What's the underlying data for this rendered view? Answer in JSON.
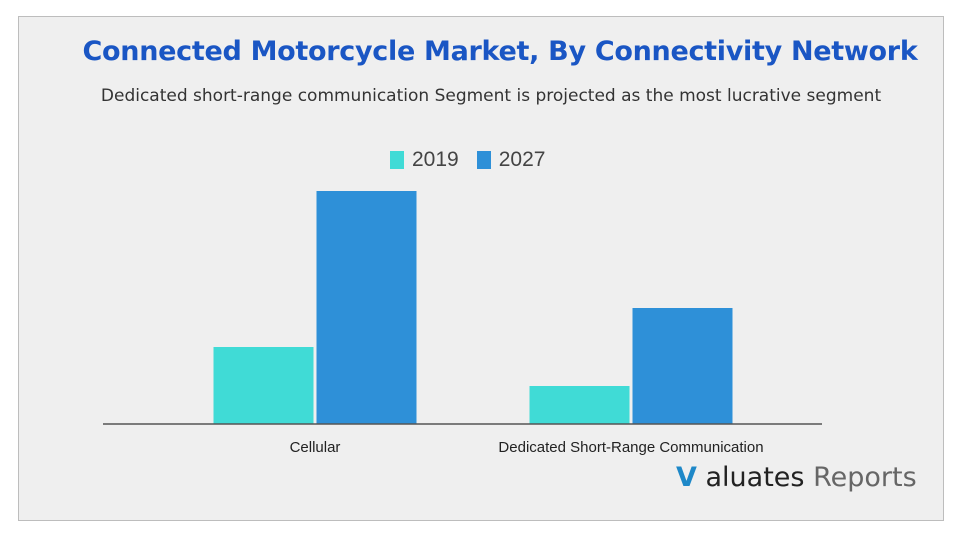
{
  "chart_data": {
    "type": "bar",
    "title": "Connected Motorcycle Market, By Connectivity Network",
    "subtitle": "Dedicated short-range communication Segment is projected as the most lucrative segment",
    "categories": [
      "Cellular",
      "Dedicated Short-Range Communication"
    ],
    "series": [
      {
        "name": "2019",
        "color": "#40dbd6",
        "values": [
          77,
          38
        ]
      },
      {
        "name": "2027",
        "color": "#2e90d8",
        "values": [
          233,
          116
        ]
      }
    ],
    "ylim": [
      0,
      240
    ],
    "xlabel": "",
    "ylabel": "",
    "grid": false,
    "legend_position": "top-center"
  },
  "logo": {
    "v": "V",
    "brand": "aluates",
    "suffix": "Reports"
  }
}
